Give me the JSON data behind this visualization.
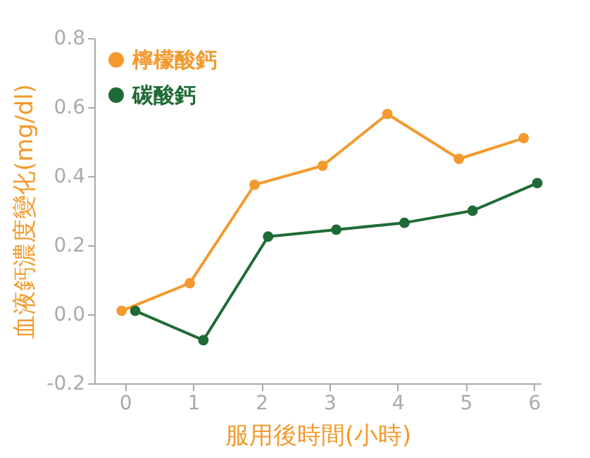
{
  "chart_data": {
    "type": "line",
    "xlabel": "服用後時間(小時)",
    "ylabel": "血液鈣濃度變化(mg/dl)",
    "xlim": [
      -0.45,
      6.1
    ],
    "xticks": [
      0,
      1,
      2,
      3,
      4,
      5,
      6
    ],
    "ylim": [
      -0.2,
      0.8
    ],
    "yticks": [
      {
        "value": -0.2,
        "label": "-0.2"
      },
      {
        "value": 0,
        "label": "0.0"
      },
      {
        "value": 0.2,
        "label": "0.2"
      },
      {
        "value": 0.4,
        "label": "0.4"
      },
      {
        "value": 0.6,
        "label": "0.6"
      },
      {
        "value": 0.8,
        "label": "0.8"
      }
    ],
    "grid": false,
    "legend": "top left",
    "marker": "circle",
    "line_style": "solid",
    "series": [
      {
        "name": "檸檬酸鈣",
        "color": "#f39a2e",
        "x": [
          -0.05,
          0.95,
          1.9,
          2.9,
          3.85,
          4.9,
          5.85
        ],
        "values": [
          0.01,
          0.09,
          0.375,
          0.43,
          0.58,
          0.45,
          0.51
        ]
      },
      {
        "name": "碳酸鈣",
        "color": "#1f6b35",
        "x": [
          0.15,
          1.15,
          2.1,
          3.1,
          4.1,
          5.1,
          6.05
        ],
        "values": [
          0.01,
          -0.075,
          0.225,
          0.245,
          0.265,
          0.3,
          0.38
        ]
      }
    ]
  }
}
